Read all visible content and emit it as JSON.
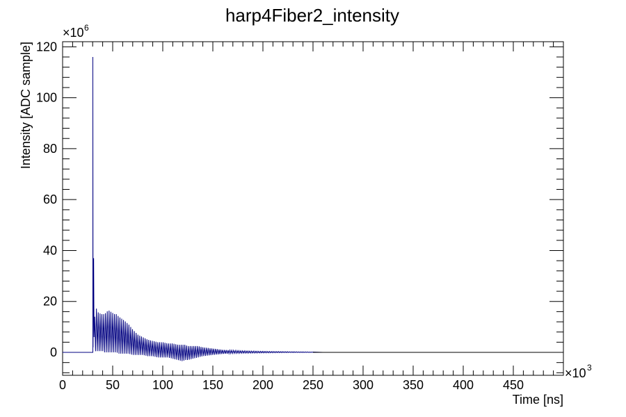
{
  "chart_data": {
    "type": "line",
    "title": "harp4Fiber2_intensity",
    "xlabel": "Time [ns]",
    "ylabel": "Intensity [ADC sample]",
    "x_multiplier": {
      "base": "×10",
      "exponent": "3"
    },
    "y_multiplier": {
      "base": "×10",
      "exponent": "6"
    },
    "xlim": [
      0,
      500
    ],
    "ylim": [
      -9,
      122
    ],
    "x_ticks": [
      0,
      50,
      100,
      150,
      200,
      250,
      300,
      350,
      400,
      450
    ],
    "x_tick_labels": [
      "0",
      "50",
      "100",
      "150",
      "200",
      "250",
      "300",
      "350",
      "400",
      "450"
    ],
    "y_ticks": [
      0,
      20,
      40,
      60,
      80,
      100,
      120
    ],
    "y_tick_labels": [
      "0",
      "20",
      "40",
      "60",
      "80",
      "100",
      "120"
    ],
    "grid": false,
    "line_color": "#000080",
    "series": [
      {
        "x": [
          0,
          30.0,
          30.2,
          30.5,
          31.0,
          31.5,
          32.0,
          33.0,
          34.0,
          35.0,
          36.0,
          37.0,
          38.0,
          40.0,
          42.0,
          44.0,
          46.0,
          48.0,
          50.0,
          52.0,
          54.0,
          56.0,
          58.0,
          60.0,
          63.0,
          66.0,
          70.0,
          75.0,
          80.0,
          85.0,
          90.0,
          95.0,
          100.0,
          105.0,
          110.0,
          115.0,
          120.0,
          122.0,
          125.0,
          130.0,
          135.0,
          140.0,
          150.0,
          160.0,
          170.0,
          180.0,
          200.0,
          220.0,
          240.0,
          260.0,
          300.0,
          400.0,
          500.0
        ],
        "y": [
          0,
          0.5,
          116,
          15,
          37,
          8,
          14,
          18,
          17,
          16,
          15.5,
          15.5,
          15,
          15,
          15,
          16,
          16.5,
          16,
          15.5,
          15,
          15,
          14,
          13.5,
          13,
          12,
          11,
          9,
          7,
          6,
          5,
          4.5,
          4,
          4,
          3.5,
          3.5,
          3,
          3,
          3,
          2.5,
          2.5,
          2.5,
          2,
          1.5,
          1,
          0.8,
          0.6,
          0.4,
          0.3,
          0.2,
          0.1,
          0.05,
          0.02,
          0.0
        ],
        "y_min": [
          0,
          0,
          0,
          0,
          0,
          0,
          0,
          0.5,
          0.5,
          0.5,
          0.5,
          0.5,
          0.5,
          0.5,
          0,
          0,
          0,
          0,
          0,
          0,
          0,
          -0.5,
          -0.5,
          -0.5,
          -0.5,
          -0.5,
          -1,
          -1,
          -1,
          -1.5,
          -1.5,
          -2,
          -2,
          -2,
          -2.5,
          -3,
          -3.5,
          -3,
          -3,
          -2.5,
          -2,
          -1.5,
          -1,
          -0.6,
          -0.4,
          -0.3,
          -0.2,
          -0.1,
          -0.05,
          0,
          0,
          0,
          0
        ]
      }
    ]
  }
}
